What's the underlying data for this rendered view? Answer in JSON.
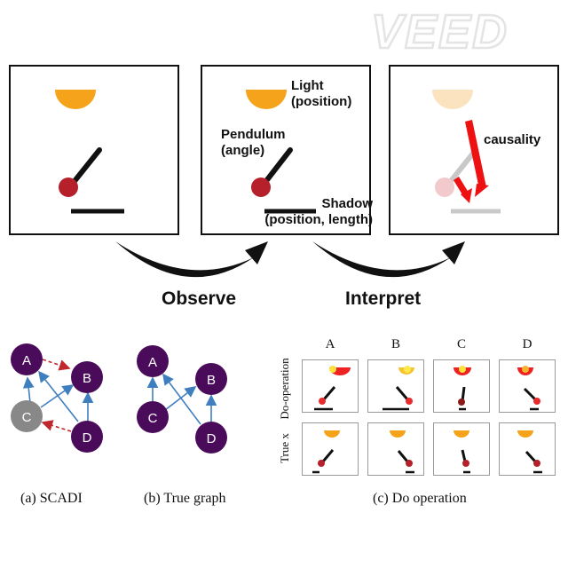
{
  "watermark": "VEED",
  "panels": {
    "observe_panel": {},
    "labeled_panel": {
      "light_label": "Light\n(position)",
      "pendulum_label": "Pendulum\n(angle)",
      "shadow_label": "Shadow\n(position, length)"
    },
    "causality_panel": {
      "causality_label": "causality"
    }
  },
  "arrows": {
    "observe_label": "Observe",
    "interpret_label": "Interpret"
  },
  "graphs": {
    "scadi": {
      "nodes": [
        "A",
        "B",
        "C",
        "D"
      ],
      "caption": "(a) SCADI"
    },
    "true_graph": {
      "nodes": [
        "A",
        "B",
        "C",
        "D"
      ],
      "caption": "(b) True graph"
    }
  },
  "do_operation": {
    "columns": [
      "A",
      "B",
      "C",
      "D"
    ],
    "rows": [
      "Do-operation",
      "True x"
    ],
    "caption": "(c) Do operation"
  },
  "colors": {
    "light": "#f5a31a",
    "pendulum_ball": "#b5202a",
    "node_purple": "#4a0b5a",
    "node_gray": "#888888",
    "edge_blue": "#3f7fbf",
    "edge_red_dashed": "#c0282d",
    "causality_arrow": "#ee1111"
  }
}
